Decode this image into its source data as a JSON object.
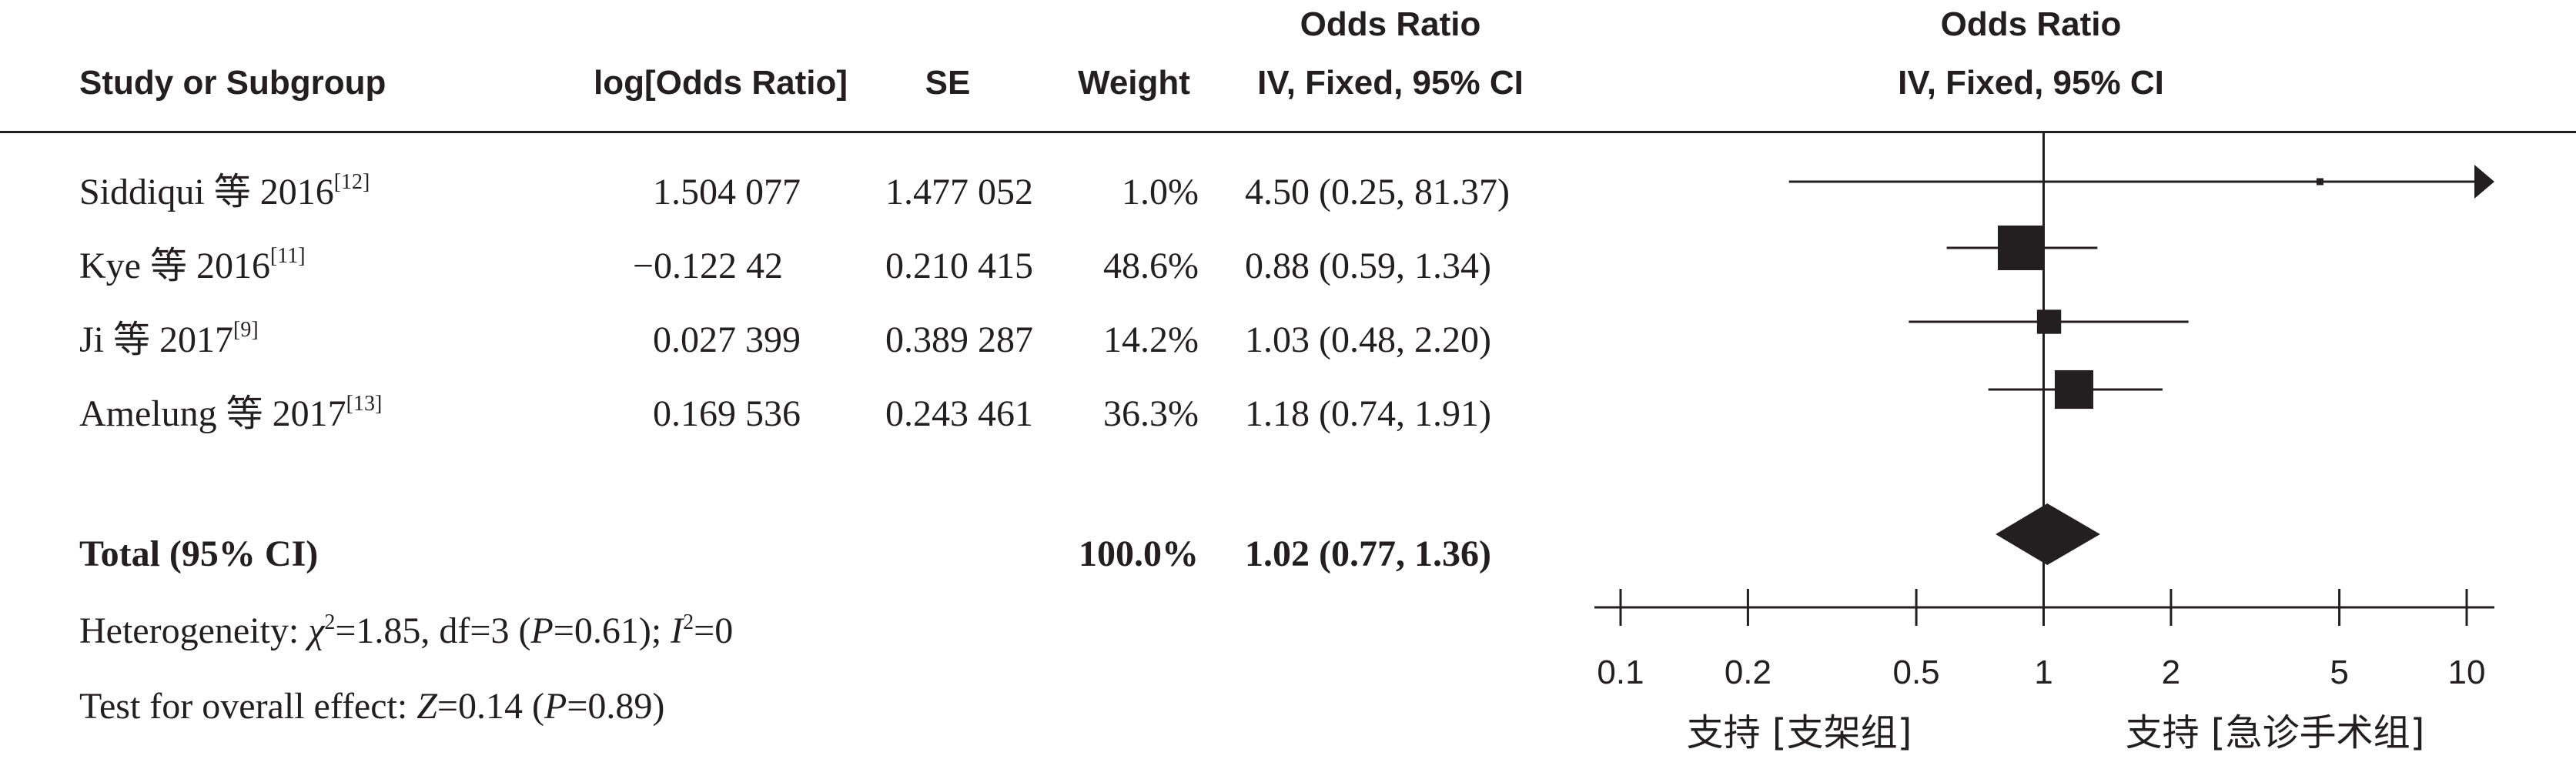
{
  "header": {
    "study": "Study or Subgroup",
    "log_or": "log[Odds Ratio]",
    "se": "SE",
    "weight": "Weight",
    "or_title": "Odds Ratio",
    "or_method": "IV, Fixed, 95% CI",
    "plot_title": "Odds Ratio",
    "plot_method": "IV, Fixed, 95% CI"
  },
  "studies": [
    {
      "name": "Siddiqui 等 2016",
      "ref": "[12]",
      "log_or": "1.504 077",
      "se": "1.477 052",
      "weight": "1.0%",
      "ci_text": "4.50 (0.25, 81.37)"
    },
    {
      "name": "Kye 等 2016",
      "ref": "[11]",
      "log_or": "−0.122 42",
      "se": "0.210 415",
      "weight": "48.6%",
      "ci_text": "0.88 (0.59, 1.34)"
    },
    {
      "name": "Ji 等 2017",
      "ref": "[9]",
      "log_or": "0.027 399",
      "se": "0.389 287",
      "weight": "14.2%",
      "ci_text": "1.03 (0.48, 2.20)"
    },
    {
      "name": "Amelung 等 2017",
      "ref": "[13]",
      "log_or": "0.169 536",
      "se": "0.243 461",
      "weight": "36.3%",
      "ci_text": "1.18 (0.74, 1.91)"
    }
  ],
  "total": {
    "label": "Total (95% CI)",
    "weight": "100.0%",
    "ci_text": "1.02 (0.77, 1.36)"
  },
  "heterogeneity": {
    "prefix": "Heterogeneity: ",
    "chi_symbol": "χ",
    "chi_sup": "2",
    "chi_value": "=1.85, df=3 (",
    "p_symbol": "P",
    "p_value": "=0.61); ",
    "i_symbol": "I",
    "i_sup": "2",
    "i_value": "=0"
  },
  "overall": {
    "prefix": "Test for overall effect: ",
    "z_symbol": "Z",
    "z_value": "=0.14 (",
    "p_symbol": "P",
    "p_value": "=0.89)"
  },
  "favours": {
    "left": "支持 [支架组]",
    "right": "支持 [急诊手术组]"
  },
  "chart_data": {
    "type": "forest",
    "scale": "log",
    "xlim": [
      0.1,
      10
    ],
    "ticks": [
      0.1,
      0.2,
      0.5,
      1,
      2,
      5,
      10
    ],
    "tick_labels": [
      "0.1",
      "0.2",
      "0.5",
      "1",
      "2",
      "5",
      "10"
    ],
    "null_line": 1,
    "color": "#231f20",
    "studies": [
      {
        "name": "Siddiqui 等 2016",
        "or": 4.5,
        "lower": 0.25,
        "upper": 81.37,
        "weight": 1.0
      },
      {
        "name": "Kye 等 2016",
        "or": 0.88,
        "lower": 0.59,
        "upper": 1.34,
        "weight": 48.6
      },
      {
        "name": "Ji 等 2017",
        "or": 1.03,
        "lower": 0.48,
        "upper": 2.2,
        "weight": 14.2
      },
      {
        "name": "Amelung 等 2017",
        "or": 1.18,
        "lower": 0.74,
        "upper": 1.91,
        "weight": 36.3
      }
    ],
    "total": {
      "name": "Total (95% CI)",
      "or": 1.02,
      "lower": 0.77,
      "upper": 1.36,
      "weight": 100.0
    }
  }
}
